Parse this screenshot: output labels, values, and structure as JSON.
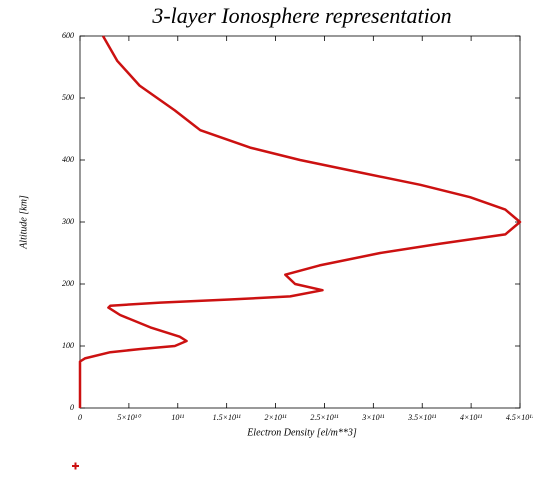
{
  "chart_data": {
    "type": "line",
    "title": "3-layer Ionosphere representation",
    "x_label": "Electron Density [el/m**3]",
    "y_label": "Altitude [km]",
    "x": [
      23500000000.0,
      38000000000.0,
      61000000000.0,
      97000000000.0,
      123000000000.0,
      174000000000.0,
      225000000000.0,
      286000000000.0,
      348000000000.0,
      399000000000.0,
      435000000000.0,
      450000000000.0,
      435000000000.0,
      368000000000.0,
      307000000000.0,
      245000000000.0,
      210000000000.0,
      220000000000.0,
      248000000000.0,
      215000000000.0,
      153000000000.0,
      82000000000.0,
      31000000000.0,
      29000000000.0,
      41000000000.0,
      72000000000.0,
      102000000000.0,
      109000000000.0,
      97000000000.0,
      61000000000.0,
      31000000000.0,
      5000000000.0,
      0,
      0
    ],
    "series": [
      {
        "name": "Altitude",
        "color": "#cc1111",
        "values": [
          600,
          560,
          520,
          480,
          448,
          420,
          400,
          380,
          360,
          340,
          320,
          300,
          280,
          265,
          250,
          230,
          215,
          200,
          190,
          180,
          175,
          170,
          165,
          162,
          150,
          130,
          115,
          108,
          100,
          95,
          90,
          80,
          75,
          0
        ]
      }
    ],
    "xlim": [
      0,
      450000000000.0
    ],
    "ylim": [
      0,
      600
    ],
    "xticks": [
      0,
      {
        "value": 50000000000.0,
        "label": "5×10¹⁰"
      },
      {
        "value": 100000000000.0,
        "label": "10¹¹"
      },
      {
        "value": 150000000000.0,
        "label": "1.5×10¹¹"
      },
      {
        "value": 200000000000.0,
        "label": "2×10¹¹"
      },
      {
        "value": 250000000000.0,
        "label": "2.5×10¹¹"
      },
      {
        "value": 300000000000.0,
        "label": "3×10¹¹"
      },
      {
        "value": 350000000000.0,
        "label": "3.5×10¹¹"
      },
      {
        "value": 400000000000.0,
        "label": "4×10¹¹"
      },
      {
        "value": 450000000000.0,
        "label": "4.5×10¹¹"
      }
    ],
    "yticks": [
      0,
      100,
      200,
      300,
      400,
      500,
      600
    ]
  }
}
